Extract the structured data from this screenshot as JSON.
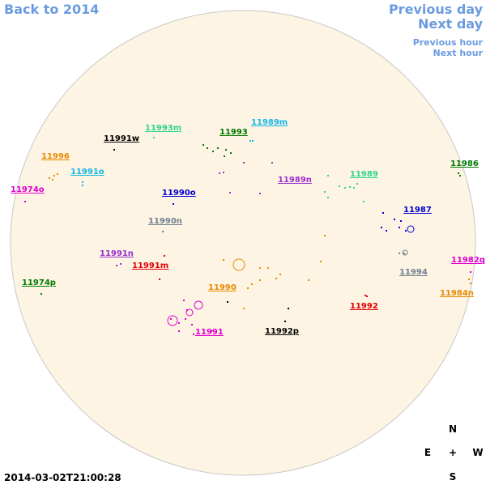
{
  "nav": {
    "back": "Back to 2014",
    "previous_day": "Previous day",
    "next_day": "Next day",
    "previous_hour": "Previous hour",
    "next_hour": "Next hour"
  },
  "regions": [
    {
      "label": "11991w",
      "color": "#000000"
    },
    {
      "label": "11993m",
      "color": "#2ed68a"
    },
    {
      "label": "11993",
      "color": "#007a00"
    },
    {
      "label": "11989m",
      "color": "#12b8e8"
    },
    {
      "label": "11996",
      "color": "#e88a00"
    },
    {
      "label": "11991o",
      "color": "#12b8e8"
    },
    {
      "label": "11974o",
      "color": "#e000d0"
    },
    {
      "label": "11990o",
      "color": "#0000d0"
    },
    {
      "label": "11989n",
      "color": "#9a2ed0"
    },
    {
      "label": "11989",
      "color": "#2ed68a"
    },
    {
      "label": "11986",
      "color": "#007a00"
    },
    {
      "label": "11987",
      "color": "#0000d0"
    },
    {
      "label": "11990n",
      "color": "#708090"
    },
    {
      "label": "11991n",
      "color": "#9a2ed0"
    },
    {
      "label": "11991m",
      "color": "#e00000"
    },
    {
      "label": "11974p",
      "color": "#007a00"
    },
    {
      "label": "11982q",
      "color": "#e000d0"
    },
    {
      "label": "11994",
      "color": "#708090"
    },
    {
      "label": "11984n",
      "color": "#e88a00"
    },
    {
      "label": "11990",
      "color": "#e88a00"
    },
    {
      "label": "11992",
      "color": "#e00000"
    },
    {
      "label": "11991",
      "color": "#e000d0"
    },
    {
      "label": "11992p",
      "color": "#000000"
    }
  ],
  "compass": {
    "north": "N",
    "east": "E",
    "center": "+",
    "west": "W",
    "south": "S"
  },
  "timestamp": "2014-03-02T21:00:28"
}
